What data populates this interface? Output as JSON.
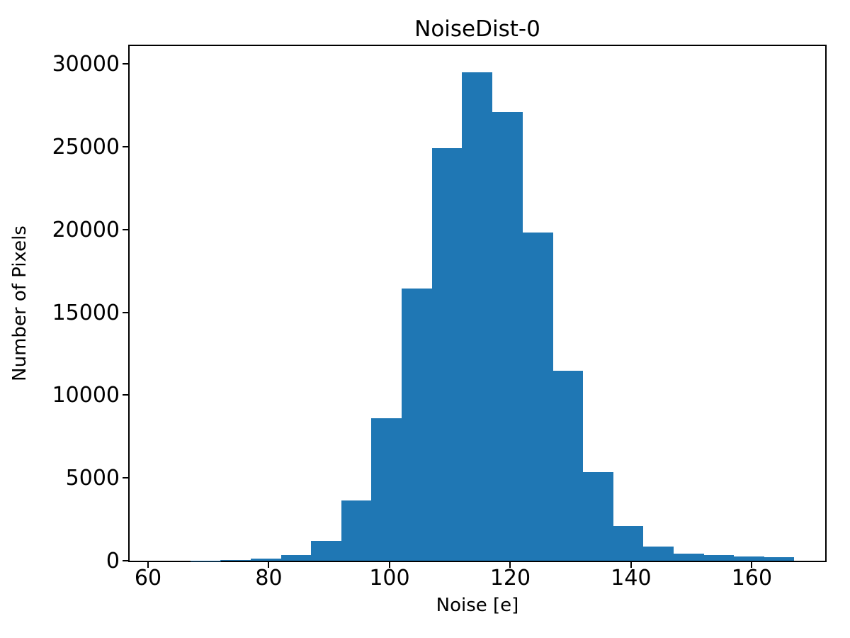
{
  "chart_data": {
    "type": "histogram",
    "title": "NoiseDist-0",
    "xlabel": "Noise [e]",
    "ylabel": "Number of Pixels",
    "bar_color": "#1f77b4",
    "axis_color": "#000000",
    "background_color": "#ffffff",
    "bin_edges": [
      62,
      67,
      72,
      77,
      82,
      87,
      92,
      97,
      102,
      107,
      112,
      117,
      122,
      127,
      132,
      137,
      142,
      147,
      152,
      157,
      162,
      167
    ],
    "counts": [
      2,
      10,
      60,
      150,
      330,
      1210,
      3650,
      8610,
      16450,
      24920,
      29480,
      27090,
      19840,
      11480,
      5350,
      2110,
      855,
      430,
      330,
      245,
      230
    ],
    "xticks": [
      60,
      80,
      100,
      120,
      140,
      160
    ],
    "xtick_labels": [
      "60",
      "80",
      "100",
      "120",
      "140",
      "160"
    ],
    "yticks": [
      0,
      5000,
      10000,
      15000,
      20000,
      25000,
      30000
    ],
    "ytick_labels": [
      "0",
      "5000",
      "10000",
      "15000",
      "20000",
      "25000",
      "30000"
    ],
    "xlim": [
      56.95,
      172.15
    ],
    "ylim": [
      0,
      31080
    ],
    "grid": false,
    "legend": null
  }
}
